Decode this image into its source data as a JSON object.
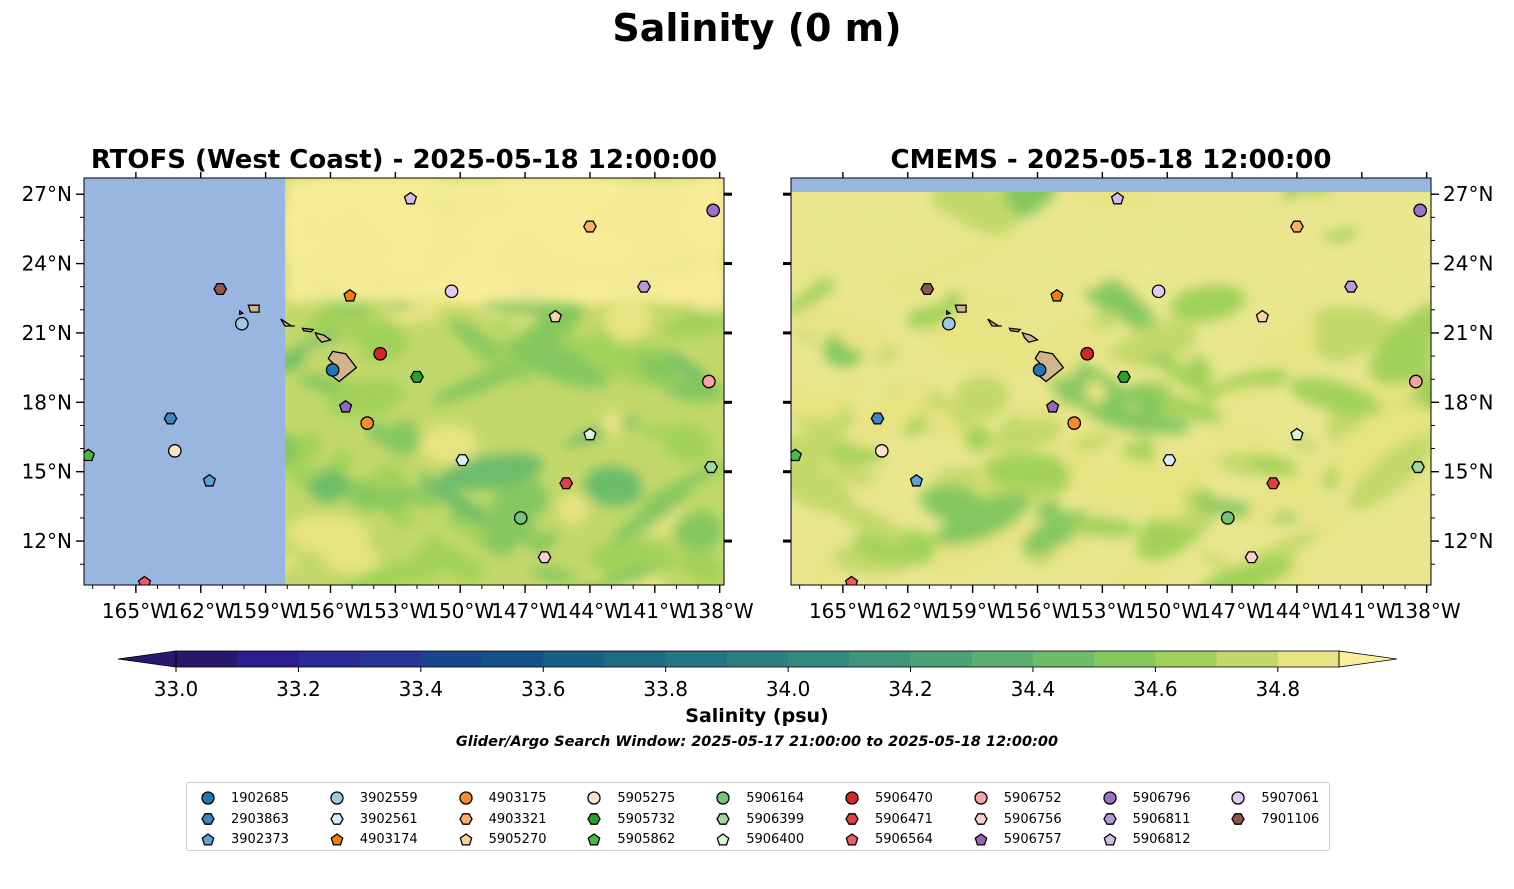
{
  "title": "Salinity (0 m)",
  "colors": {
    "ocean": "#98b6e0",
    "land": "#d2b48c",
    "scale": [
      "#2a186c",
      "#2c1e8f",
      "#2a2a95",
      "#283594",
      "#19468c",
      "#14508a",
      "#1a5f86",
      "#1f6c85",
      "#267583",
      "#2e7f81",
      "#36897f",
      "#41957c",
      "#4ea077",
      "#5caf72",
      "#6cbc6b",
      "#85c85f",
      "#a1d15a",
      "#c3d86b",
      "#e7e383"
    ],
    "scale_under": "#2a186c",
    "scale_over": "#fbed9a"
  },
  "chart_data": [
    {
      "type": "heatmap",
      "title": "RTOFS (West Coast) - 2025-05-18 12:00:00",
      "x_ticks": [
        "165°W",
        "162°W",
        "159°W",
        "156°W",
        "153°W",
        "150°W",
        "147°W",
        "144°W",
        "141°W",
        "138°W"
      ],
      "x_tick_values": [
        -165,
        -162,
        -159,
        -156,
        -153,
        -150,
        -147,
        -144,
        -141,
        -138
      ],
      "y_ticks": [
        "27°N",
        "24°N",
        "21°N",
        "18°N",
        "15°N",
        "12°N"
      ],
      "y_tick_values": [
        27,
        24,
        21,
        18,
        15,
        12
      ],
      "xlim": [
        -167.4,
        -137.8
      ],
      "ylim": [
        10.1,
        27.7
      ],
      "ytick_side": "left",
      "no_data_region": {
        "lon": [
          -167.4,
          -158.1
        ],
        "lat": [
          10.1,
          27.7
        ]
      }
    },
    {
      "type": "heatmap",
      "title": "CMEMS - 2025-05-18 12:00:00",
      "x_ticks": [
        "165°W",
        "162°W",
        "159°W",
        "156°W",
        "153°W",
        "150°W",
        "147°W",
        "144°W",
        "141°W",
        "138°W"
      ],
      "x_tick_values": [
        -165,
        -162,
        -159,
        -156,
        -153,
        -150,
        -147,
        -144,
        -141,
        -138
      ],
      "y_ticks": [
        "27°N",
        "24°N",
        "21°N",
        "18°N",
        "15°N",
        "12°N"
      ],
      "y_tick_values": [
        27,
        24,
        21,
        18,
        15,
        12
      ],
      "xlim": [
        -167.4,
        -137.8
      ],
      "ylim": [
        10.1,
        27.7
      ],
      "ytick_side": "right",
      "no_data_region": {
        "lon": [
          -167.4,
          -137.8
        ],
        "lat": [
          27.1,
          27.7
        ]
      }
    }
  ],
  "colorbar": {
    "label": "Salinity (psu)",
    "ticks": [
      "33.0",
      "33.2",
      "33.4",
      "33.6",
      "33.8",
      "34.0",
      "34.2",
      "34.4",
      "34.6",
      "34.8"
    ],
    "tick_values": [
      33.0,
      33.2,
      33.4,
      33.6,
      33.8,
      34.0,
      34.2,
      34.4,
      34.6,
      34.8
    ],
    "levels": [
      33.0,
      33.1,
      33.2,
      33.3,
      33.4,
      33.5,
      33.6,
      33.7,
      33.8,
      33.9,
      34.0,
      34.1,
      34.2,
      34.3,
      34.4,
      34.5,
      34.6,
      34.7,
      34.8,
      34.9
    ],
    "extend": "both"
  },
  "subtitle": "Glider/Argo Search Window: 2025-05-17 21:00:00 to 2025-05-18 12:00:00",
  "floats": [
    {
      "id": "1902685",
      "marker": "circle",
      "color": "#1f77b4",
      "lon": -155.9,
      "lat": 19.4
    },
    {
      "id": "2903863",
      "marker": "hexagon",
      "color": "#3a87c4",
      "lon": -163.4,
      "lat": 17.3
    },
    {
      "id": "3902373",
      "marker": "pentagon",
      "color": "#5aa5d8",
      "lon": -161.6,
      "lat": 14.6
    },
    {
      "id": "3902559",
      "marker": "circle",
      "color": "#9ecae1",
      "lon": -160.1,
      "lat": 21.4
    },
    {
      "id": "3902561",
      "marker": "hexagon",
      "color": "#d7effa",
      "lon": -149.9,
      "lat": 15.5
    },
    {
      "id": "4903174",
      "marker": "pentagon",
      "color": "#f07f10",
      "lon": -155.1,
      "lat": 22.6
    },
    {
      "id": "4903175",
      "marker": "circle",
      "color": "#f58d2b",
      "lon": -154.3,
      "lat": 17.1
    },
    {
      "id": "4903321",
      "marker": "hexagon",
      "color": "#fdae6b",
      "lon": -144.0,
      "lat": 25.6
    },
    {
      "id": "4903321b",
      "skip": true
    },
    {
      "id": "5905270",
      "marker": "pentagon",
      "color": "#fdd0a2",
      "lon": -145.6,
      "lat": 21.7
    },
    {
      "id": "5905275",
      "marker": "circle",
      "color": "#fde3c8",
      "lon": -163.2,
      "lat": 15.9
    },
    {
      "id": "5905732",
      "marker": "hexagon",
      "color": "#2ca02c",
      "lon": -152.0,
      "lat": 19.1
    },
    {
      "id": "5905862",
      "marker": "pentagon",
      "color": "#4cb84c",
      "lon": -167.2,
      "lat": 15.7
    },
    {
      "id": "5906164",
      "marker": "circle",
      "color": "#74c476",
      "lon": -147.2,
      "lat": 13.0
    },
    {
      "id": "5906399",
      "marker": "hexagon",
      "color": "#a1d99b",
      "lon": -138.4,
      "lat": 15.2
    },
    {
      "id": "5906400",
      "marker": "pentagon",
      "color": "#d9f5d3",
      "lon": -144.0,
      "lat": 16.6
    },
    {
      "id": "5906470",
      "marker": "circle",
      "color": "#d62728",
      "lon": -153.7,
      "lat": 20.1
    },
    {
      "id": "5906471",
      "marker": "hexagon",
      "color": "#e04040",
      "lon": -145.1,
      "lat": 14.5
    },
    {
      "id": "5906564",
      "marker": "pentagon",
      "color": "#e86060",
      "lon": -164.6,
      "lat": 10.2
    },
    {
      "id": "5906752",
      "marker": "circle",
      "color": "#f7a3a3",
      "lon": -138.5,
      "lat": 18.9
    },
    {
      "id": "5906756",
      "marker": "hexagon",
      "color": "#fbcfcf",
      "lon": -146.1,
      "lat": 11.3
    },
    {
      "id": "5906757",
      "marker": "pentagon",
      "color": "#9467bd",
      "lon": -155.3,
      "lat": 17.8
    },
    {
      "id": "5906796",
      "marker": "circle",
      "color": "#9a73c8",
      "lon": -138.3,
      "lat": 26.3
    },
    {
      "id": "5906811",
      "marker": "hexagon",
      "color": "#b89ad9",
      "lon": -141.5,
      "lat": 23.0
    },
    {
      "id": "5906812",
      "marker": "pentagon",
      "color": "#d2bdf0",
      "lon": -152.3,
      "lat": 26.8
    },
    {
      "id": "5907061",
      "marker": "circle",
      "color": "#e0cdf5",
      "lon": -150.4,
      "lat": 22.8
    },
    {
      "id": "7901106",
      "marker": "hexagon",
      "color": "#8c564b",
      "lon": -161.1,
      "lat": 22.9
    }
  ],
  "legend": [
    {
      "id": "1902685",
      "marker": "circle",
      "color": "#1f77b4"
    },
    {
      "id": "2903863",
      "marker": "hexagon",
      "color": "#3a87c4"
    },
    {
      "id": "3902373",
      "marker": "pentagon",
      "color": "#5aa5d8"
    },
    {
      "id": "3902559",
      "marker": "circle",
      "color": "#9ecae1"
    },
    {
      "id": "3902561",
      "marker": "hexagon",
      "color": "#d7effa"
    },
    {
      "id": "4903174",
      "marker": "pentagon",
      "color": "#f07f10"
    },
    {
      "id": "4903175",
      "marker": "circle",
      "color": "#f58d2b"
    },
    {
      "id": "4903321",
      "marker": "hexagon",
      "color": "#fdae6b"
    },
    {
      "id": "5905270",
      "marker": "pentagon",
      "color": "#fdd0a2"
    },
    {
      "id": "5905275",
      "marker": "circle",
      "color": "#fde3c8"
    },
    {
      "id": "5905732",
      "marker": "hexagon",
      "color": "#2ca02c"
    },
    {
      "id": "5905862",
      "marker": "pentagon",
      "color": "#4cb84c"
    },
    {
      "id": "5906164",
      "marker": "circle",
      "color": "#74c476"
    },
    {
      "id": "5906399",
      "marker": "hexagon",
      "color": "#a1d99b"
    },
    {
      "id": "5906400",
      "marker": "pentagon",
      "color": "#d9f5d3"
    },
    {
      "id": "5906470",
      "marker": "circle",
      "color": "#d62728"
    },
    {
      "id": "5906471",
      "marker": "hexagon",
      "color": "#e04040"
    },
    {
      "id": "5906564",
      "marker": "pentagon",
      "color": "#e86060"
    },
    {
      "id": "5906752",
      "marker": "circle",
      "color": "#f7a3a3"
    },
    {
      "id": "5906756",
      "marker": "hexagon",
      "color": "#fbcfcf"
    },
    {
      "id": "5906757",
      "marker": "pentagon",
      "color": "#9467bd"
    },
    {
      "id": "5906796",
      "marker": "circle",
      "color": "#9a73c8"
    },
    {
      "id": "5906811",
      "marker": "hexagon",
      "color": "#b89ad9"
    },
    {
      "id": "5906812",
      "marker": "pentagon",
      "color": "#d2bdf0"
    },
    {
      "id": "5907061",
      "marker": "circle",
      "color": "#e0cdf5"
    },
    {
      "id": "7901106",
      "marker": "hexagon",
      "color": "#8c564b"
    }
  ]
}
